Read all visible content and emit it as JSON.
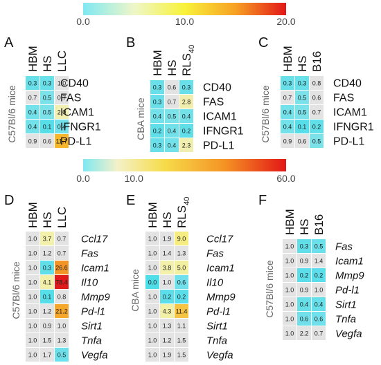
{
  "chart_data": [
    {
      "type": "heatmap",
      "panel_label": "A",
      "ylabel": "C57Bl/6 mice",
      "columns": [
        "HBM",
        "HS",
        "LLC"
      ],
      "row_style": "normal",
      "rows": [
        "CD40",
        "FAS",
        "ICAM1",
        "IFNGR1",
        "PD-L1"
      ],
      "values": [
        [
          0.3,
          0.3,
          1.0
        ],
        [
          0.7,
          0.5,
          0.7
        ],
        [
          0.4,
          0.5,
          2.0
        ],
        [
          0.4,
          0.1,
          0.4
        ],
        [
          0.9,
          0.6,
          11.7
        ]
      ],
      "labels": [
        [
          "0.3",
          "0.3",
          "1.0"
        ],
        [
          "0.7",
          "0.5",
          "0.7"
        ],
        [
          "0.4",
          "0.5",
          "2.0"
        ],
        [
          "0.4",
          "0.1",
          "0.4"
        ],
        [
          "0.9",
          "0.6",
          "11.7"
        ]
      ],
      "scale_max": 20.0
    },
    {
      "type": "heatmap",
      "panel_label": "B",
      "ylabel": "CBA mice",
      "columns": [
        "HBM",
        "HS",
        "RLS"
      ],
      "column_subscripts": [
        "",
        "",
        "40"
      ],
      "row_style": "normal",
      "rows": [
        "CD40",
        "FAS",
        "ICAM1",
        "IFNGR1",
        "PD-L1"
      ],
      "values": [
        [
          0.3,
          0.6,
          0.3
        ],
        [
          0.3,
          0.7,
          2.8
        ],
        [
          0.4,
          0.5,
          0.4
        ],
        [
          0.2,
          0.4,
          0.2
        ],
        [
          0.3,
          0.4,
          2.3
        ]
      ],
      "labels": [
        [
          "0.3",
          "0.6",
          "0.3"
        ],
        [
          "0.3",
          "0.7",
          "2.8"
        ],
        [
          "0.4",
          "0.5",
          "0.4"
        ],
        [
          "0.2",
          "0.4",
          "0.2"
        ],
        [
          "0.3",
          "0.4",
          "2.3"
        ]
      ],
      "scale_max": 20.0
    },
    {
      "type": "heatmap",
      "panel_label": "C",
      "ylabel": "C57Bl/6 mice",
      "columns": [
        "HBM",
        "HS",
        "B16"
      ],
      "row_style": "normal",
      "rows": [
        "CD40",
        "FAS",
        "ICAM1",
        "IFNGR1",
        "PD-L1"
      ],
      "values": [
        [
          0.3,
          0.3,
          0.8
        ],
        [
          0.7,
          0.5,
          0.6
        ],
        [
          0.4,
          0.5,
          0.7
        ],
        [
          0.4,
          0.1,
          0.2
        ],
        [
          0.9,
          0.6,
          0.5
        ]
      ],
      "labels": [
        [
          "0.3",
          "0.3",
          "0.8"
        ],
        [
          "0.7",
          "0.5",
          "0.6"
        ],
        [
          "0.4",
          "0.5",
          "0.7"
        ],
        [
          "0.4",
          "0.1",
          "0.2"
        ],
        [
          "0.9",
          "0.6",
          "0.5"
        ]
      ],
      "scale_max": 20.0
    },
    {
      "type": "heatmap",
      "panel_label": "D",
      "ylabel": "C57Bl/6 mice",
      "columns": [
        "HBM",
        "HS",
        "LLC"
      ],
      "row_style": "italic",
      "rows": [
        "Ccl17",
        "Fas",
        "Icam1",
        "Il10",
        "Mmp9",
        "Pd-l1",
        "Sirt1",
        "Tnfa",
        "Vegfa"
      ],
      "values": [
        [
          1.0,
          3.7,
          0.7
        ],
        [
          1.0,
          1.2,
          0.7
        ],
        [
          1.0,
          0.3,
          26.6
        ],
        [
          1.0,
          4.1,
          78.4
        ],
        [
          1.0,
          0.1,
          0.8
        ],
        [
          1.0,
          1.2,
          21.2
        ],
        [
          1.0,
          0.9,
          1.0
        ],
        [
          1.0,
          1.5,
          1.3
        ],
        [
          1.0,
          1.7,
          0.5
        ]
      ],
      "labels": [
        [
          "1.0",
          "3.7",
          "0.7"
        ],
        [
          "1.0",
          "1.2",
          "0.7"
        ],
        [
          "1.0",
          "0.3",
          "26.6"
        ],
        [
          "1.0",
          "4.1",
          "78.4"
        ],
        [
          "1.0",
          "0.1",
          "0.8"
        ],
        [
          "1.0",
          "1.2",
          "21.2"
        ],
        [
          "1.0",
          "0.9",
          "1.0"
        ],
        [
          "1.0",
          "1.5",
          "1.3"
        ],
        [
          "1.0",
          "1.7",
          "0.5"
        ]
      ],
      "scale_max": 60.0
    },
    {
      "type": "heatmap",
      "panel_label": "E",
      "ylabel": "CBA mice",
      "columns": [
        "HBM",
        "HS",
        "RLS"
      ],
      "column_subscripts": [
        "",
        "",
        "40"
      ],
      "row_style": "italic",
      "rows": [
        "Ccl17",
        "Fas",
        "Icam1",
        "Il10",
        "Mmp9",
        "Pd-l1",
        "Sirt1",
        "Tnfa",
        "Vegfa"
      ],
      "values": [
        [
          1.0,
          1.9,
          9.0
        ],
        [
          1.0,
          1.4,
          1.3
        ],
        [
          1.0,
          3.8,
          5.0
        ],
        [
          0.0,
          1.0,
          0.6
        ],
        [
          1.0,
          0.2,
          0.2
        ],
        [
          1.0,
          4.3,
          11.4
        ],
        [
          1.0,
          1.3,
          1.1
        ],
        [
          1.0,
          1.2,
          1.5
        ],
        [
          1.0,
          1.9,
          1.5
        ]
      ],
      "labels": [
        [
          "1.0",
          "1.9",
          "9.0"
        ],
        [
          "1.0",
          "1.4",
          "1.3"
        ],
        [
          "1.0",
          "3.8",
          "5.0"
        ],
        [
          "0.0",
          "1.0",
          "0.6"
        ],
        [
          "1.0",
          "0.2",
          "0.2"
        ],
        [
          "1.0",
          "4.3",
          "11.4"
        ],
        [
          "1.0",
          "1.3",
          "1.1"
        ],
        [
          "1.0",
          "1.2",
          "1.5"
        ],
        [
          "1.0",
          "1.9",
          "1.5"
        ]
      ],
      "scale_max": 60.0
    },
    {
      "type": "heatmap",
      "panel_label": "F",
      "ylabel": "C57Bl/6 mice",
      "columns": [
        "HBM",
        "HS",
        "B16"
      ],
      "row_style": "italic",
      "rows": [
        "Fas",
        "Icam1",
        "Mmp9",
        "Pd-l1",
        "Sirt1",
        "Tnfa",
        "Vegfa"
      ],
      "values": [
        [
          1.0,
          0.3,
          0.5
        ],
        [
          1.0,
          0.9,
          1.4
        ],
        [
          1.0,
          0.2,
          0.2
        ],
        [
          1.0,
          0.9,
          1.0
        ],
        [
          1.0,
          0.4,
          0.4
        ],
        [
          1.0,
          0.6,
          0.6
        ],
        [
          1.0,
          2.2,
          0.7
        ]
      ],
      "labels": [
        [
          "1.0",
          "0.3",
          "0.5"
        ],
        [
          "1.0",
          "0.9",
          "1.4"
        ],
        [
          "1.0",
          "0.2",
          "0.2"
        ],
        [
          "1.0",
          "0.9",
          "1.0"
        ],
        [
          "1.0",
          "0.4",
          "0.4"
        ],
        [
          "1.0",
          "0.6",
          "0.6"
        ],
        [
          "1.0",
          "2.2",
          "0.7"
        ]
      ],
      "scale_max": 60.0
    }
  ],
  "colorbars": [
    {
      "ticks": [
        {
          "value": 0.0,
          "label": "0.0"
        },
        {
          "value": 10.0,
          "label": "10.0"
        },
        {
          "value": 20.0,
          "label": "20.0"
        }
      ],
      "max": 20.0
    },
    {
      "ticks": [
        {
          "value": 0.0,
          "label": "0.0"
        },
        {
          "value": 10.0,
          "label": "10.0"
        },
        {
          "value": 60.0,
          "label": "60.0"
        }
      ],
      "max": 60.0
    }
  ],
  "colors": {
    "low": "#4fdde8",
    "mid_low": "#f1f1b4",
    "mid": "#f7f01e",
    "mid_high": "#f59c22",
    "high": "#e01a1a",
    "neutral": "#e3e3e3"
  }
}
